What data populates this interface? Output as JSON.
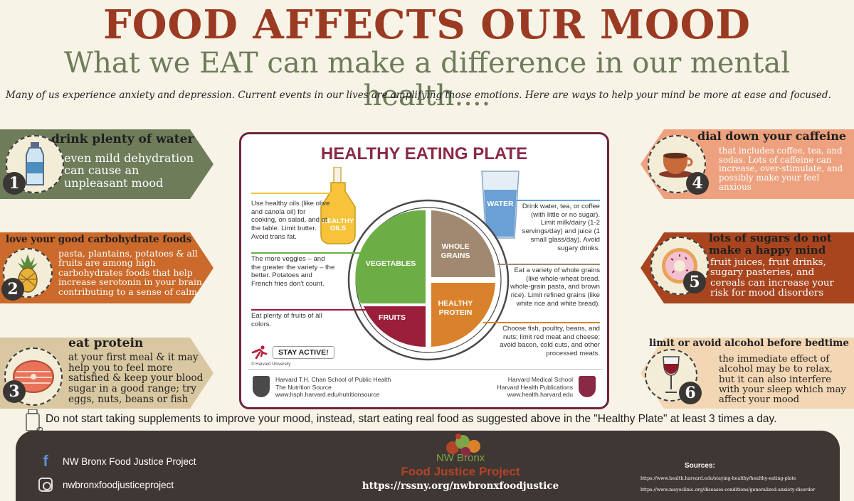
{
  "header": {
    "title": "FOOD AFFECTS OUR MOOD",
    "subtitle": "What we EAT can make a difference in our mental health....",
    "intro": "Many of us experience anxiety and depression. Current events in our lives are amplifying those emotions.  Here are ways to help your mind be more at ease and focused."
  },
  "tips": [
    {
      "number": "1",
      "heading": "drink plenty of water",
      "body": "even mild dehydration can cause an unpleasant mood",
      "icon": "water-bottle-icon"
    },
    {
      "number": "2",
      "heading": "love your good carbohydrate foods",
      "body": "pasta, plantains, potatoes & all fruits are among high carbohydrates foods that help increase serotonin in your brain contributing to a sense of calm",
      "icon": "pineapple-icon"
    },
    {
      "number": "3",
      "heading": "eat protein",
      "body": "at your first meal & it may help you to feel more satisfied & keep your blood sugar in a good range; try eggs, nuts, beans or fish",
      "icon": "salmon-steak-icon"
    },
    {
      "number": "4",
      "heading": "dial down your caffeine",
      "body": "that includes coffee, tea, and sodas. Lots of caffeine can increase, over-stimulate, and possibly make your feel anxious",
      "icon": "coffee-cup-icon"
    },
    {
      "number": "5",
      "heading": "lots of sugars do not make a happy mind",
      "body": "fruit juices, fruit drinks, sugary pasteries, and cereals can increase your risk for mood disorders",
      "icon": "donut-icon"
    },
    {
      "number": "6",
      "heading": "limit or avoid alcohol before bedtime",
      "body": "the immediate effect of alcohol may be to relax, but it can also interfere with your sleep which may affect your mood",
      "icon": "wine-glass-icon"
    }
  ],
  "plate": {
    "title": "HEALTHY EATING PLATE",
    "oils_label": "HEALTHY OILS",
    "water_label": "WATER",
    "sections": {
      "vegetables": "VEGETABLES",
      "whole_grains": "WHOLE GRAINS",
      "protein": "HEALTHY PROTEIN",
      "fruits": "FRUITS"
    },
    "oils_text": "Use healthy oils (like olive and canola oil) for cooking, on salad, and at the table. Limit butter. Avoid trans fat.",
    "veggies_text": "The more veggies – and the greater the variety – the better. Potatoes and French fries don't count.",
    "fruits_text": "Eat plenty of fruits of all colors.",
    "water_text": "Drink water, tea, or coffee (with little or no sugar). Limit milk/dairy (1-2 servings/day) and juice (1 small glass/day). Avoid sugary drinks.",
    "grains_text": "Eat a variety of whole grains (like whole-wheat bread, whole-grain pasta, and brown rice). Limit refined grains (like white rice and white bread).",
    "protein_text": "Choose fish, poultry, beans, and nuts;  limit red meat and cheese; avoid bacon, cold cuts, and other processed meats.",
    "stay_active": "STAY ACTIVE!",
    "copyright": "© Harvard University",
    "hsph_lines": [
      "Harvard T.H. Chan School of Public Health",
      "The Nutrition Source",
      "www.hsph.harvard.edu/nutritionsource"
    ],
    "hms_lines": [
      "Harvard Medical School",
      "Harvard Health Publications",
      "www.health.harvard.edu"
    ]
  },
  "supplement_note": "Do not start taking supplements to improve your mood, instead, start eating real food as suggested above in the \"Healthy Plate\" at least 3 times a day.",
  "footer": {
    "facebook": "NW Bronx Food Justice Project",
    "instagram": "nwbronxfoodjusticeproject",
    "org_line1": "NW Bronx",
    "org_line2": "Food Justice Project",
    "org_url": "https://rssny.org/nwbronxfoodjustice",
    "sources_title": "Sources:",
    "sources": [
      "https://www.health.harvard.edu/staying-healthy/healthy-eating-plate",
      "https://www.mayoclinic.org/diseases-conditions/generalized-anxiety-disorder"
    ]
  },
  "colors": {
    "title": "#9b3a22",
    "subtitle": "#6e7c5a",
    "tip1": "#6e7c5a",
    "tip2": "#cb6a2b",
    "tip3": "#d8c7a0",
    "tip4": "#eda17e",
    "tip5": "#a8451f",
    "tip6": "#f3d7b5",
    "plate_border": "#6e2540",
    "footer_bg": "#3f3733"
  }
}
